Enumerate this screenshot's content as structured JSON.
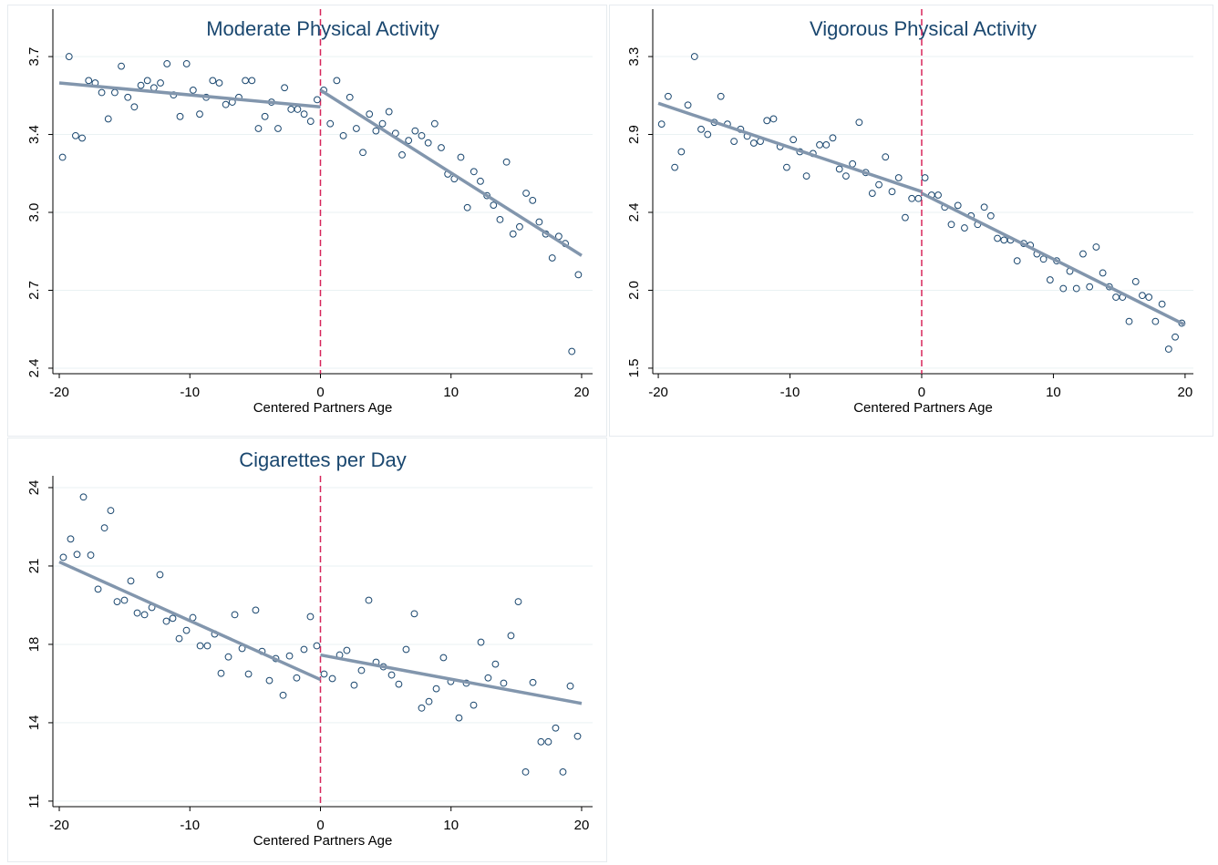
{
  "chart_data": [
    {
      "type": "scatter",
      "title": "Moderate Physical Activity",
      "xlabel": "Centered Partners Age",
      "x": [
        -19.75,
        -19.25,
        -18.75,
        -18.25,
        -17.75,
        -17.25,
        -16.75,
        -16.25,
        -15.75,
        -15.25,
        -14.75,
        -14.25,
        -13.75,
        -13.25,
        -12.75,
        -12.25,
        -11.75,
        -11.25,
        -10.75,
        -10.25,
        -9.75,
        -9.25,
        -8.75,
        -8.25,
        -7.75,
        -7.25,
        -6.75,
        -6.25,
        -5.75,
        -5.25,
        -4.75,
        -4.25,
        -3.75,
        -3.25,
        -2.75,
        -2.25,
        -1.75,
        -1.25,
        -0.75,
        -0.25,
        0.25,
        0.75,
        1.25,
        1.75,
        2.25,
        2.75,
        3.25,
        3.75,
        4.25,
        4.75,
        5.25,
        5.75,
        6.25,
        6.75,
        7.25,
        7.75,
        8.25,
        8.75,
        9.25,
        9.75,
        10.25,
        10.75,
        11.25,
        11.75,
        12.25,
        12.75,
        13.25,
        13.75,
        14.25,
        14.75,
        15.25,
        15.75,
        16.25,
        16.75,
        17.25,
        17.75,
        18.25,
        18.75,
        19.25,
        19.75
      ],
      "values": [
        3.28,
        3.7,
        3.37,
        3.36,
        3.6,
        3.59,
        3.55,
        3.44,
        3.55,
        3.66,
        3.53,
        3.49,
        3.58,
        3.6,
        3.57,
        3.59,
        3.67,
        3.54,
        3.45,
        3.67,
        3.56,
        3.46,
        3.53,
        3.6,
        3.59,
        3.5,
        3.51,
        3.53,
        3.6,
        3.6,
        3.4,
        3.45,
        3.51,
        3.4,
        3.57,
        3.48,
        3.48,
        3.46,
        3.43,
        3.52,
        3.56,
        3.42,
        3.6,
        3.37,
        3.53,
        3.4,
        3.3,
        3.46,
        3.39,
        3.42,
        3.47,
        3.38,
        3.29,
        3.35,
        3.39,
        3.37,
        3.34,
        3.42,
        3.32,
        3.21,
        3.19,
        3.28,
        3.07,
        3.22,
        3.18,
        3.12,
        3.08,
        3.02,
        3.26,
        2.96,
        2.99,
        3.13,
        3.1,
        3.01,
        2.96,
        2.86,
        2.95,
        2.92,
        2.47,
        2.79
      ],
      "point_color": "#1a476f",
      "fit": [
        {
          "x": [
            -20,
            0
          ],
          "values": [
            3.59,
            3.49
          ]
        },
        {
          "x": [
            0,
            20
          ],
          "values": [
            3.56,
            2.87
          ]
        }
      ],
      "fit_color": "#8296ad",
      "cutoff": 0,
      "cutoff_color": "#d7265b",
      "xlim": [
        -20.49,
        20.84
      ],
      "ylim": [
        2.377,
        3.898
      ],
      "xticks": [
        -20,
        -10,
        0,
        10,
        20
      ],
      "yticks": [
        2.4,
        {
          "value": 2.725,
          "label": "2.7"
        },
        {
          "value": 3.05,
          "label": "3.0"
        },
        {
          "value": 3.375,
          "label": "3.4"
        },
        3.7
      ],
      "grid": true
    },
    {
      "type": "scatter",
      "title": "Vigorous Physical Activity",
      "xlabel": "Centered Partners Age",
      "x": [
        -19.75,
        -19.25,
        -18.75,
        -18.25,
        -17.75,
        -17.25,
        -16.75,
        -16.25,
        -15.75,
        -15.25,
        -14.75,
        -14.25,
        -13.75,
        -13.25,
        -12.75,
        -12.25,
        -11.75,
        -11.25,
        -10.75,
        -10.25,
        -9.75,
        -9.25,
        -8.75,
        -8.25,
        -7.75,
        -7.25,
        -6.75,
        -6.25,
        -5.75,
        -5.25,
        -4.75,
        -4.25,
        -3.75,
        -3.25,
        -2.75,
        -2.25,
        -1.75,
        -1.25,
        -0.75,
        -0.25,
        0.25,
        0.75,
        1.25,
        1.75,
        2.25,
        2.75,
        3.25,
        3.75,
        4.25,
        4.75,
        5.25,
        5.75,
        6.25,
        6.75,
        7.25,
        7.75,
        8.25,
        8.75,
        9.25,
        9.75,
        10.25,
        10.75,
        11.25,
        11.75,
        12.25,
        12.75,
        13.25,
        13.75,
        14.25,
        14.75,
        15.25,
        15.75,
        16.25,
        16.75,
        17.25,
        17.75,
        18.25,
        18.75,
        19.25,
        19.75
      ],
      "values": [
        2.91,
        3.07,
        2.66,
        2.75,
        3.02,
        3.3,
        2.88,
        2.85,
        2.92,
        3.07,
        2.91,
        2.81,
        2.88,
        2.84,
        2.8,
        2.81,
        2.93,
        2.94,
        2.78,
        2.66,
        2.82,
        2.75,
        2.61,
        2.74,
        2.79,
        2.79,
        2.83,
        2.65,
        2.61,
        2.68,
        2.92,
        2.63,
        2.51,
        2.56,
        2.72,
        2.52,
        2.6,
        2.37,
        2.48,
        2.48,
        2.6,
        2.5,
        2.5,
        2.43,
        2.33,
        2.44,
        2.31,
        2.38,
        2.33,
        2.43,
        2.38,
        2.25,
        2.24,
        2.24,
        2.12,
        2.22,
        2.21,
        2.16,
        2.13,
        2.01,
        2.12,
        1.96,
        2.06,
        1.96,
        2.16,
        1.97,
        2.2,
        2.05,
        1.97,
        1.91,
        1.91,
        1.77,
        2.0,
        1.92,
        1.91,
        1.77,
        1.87,
        1.61,
        1.68,
        1.76
      ],
      "point_color": "#1a476f",
      "fit": [
        {
          "x": [
            -20,
            0
          ],
          "values": [
            3.03,
            2.52
          ]
        },
        {
          "x": [
            0,
            20
          ],
          "values": [
            2.51,
            1.75
          ]
        }
      ],
      "fit_color": "#8296ad",
      "cutoff": 0,
      "cutoff_color": "#d7265b",
      "xlim": [
        -20.42,
        20.63
      ],
      "ylim": [
        1.468,
        3.574
      ],
      "xticks": [
        -20,
        -10,
        0,
        10,
        20
      ],
      "yticks": [
        1.5,
        {
          "value": 1.95,
          "label": "2.0"
        },
        2.4,
        {
          "value": 2.85,
          "label": "2.9"
        },
        3.3
      ],
      "grid": true
    },
    {
      "type": "scatter",
      "title": "Cigarettes per Day",
      "xlabel": "Centered Partners Age",
      "x": [
        -19.69,
        -19.13,
        -18.64,
        -18.15,
        -17.59,
        -17.03,
        -16.54,
        -16.06,
        -15.57,
        -15.01,
        -14.52,
        -14.03,
        -13.47,
        -12.91,
        -12.29,
        -11.8,
        -11.31,
        -10.82,
        -10.26,
        -9.77,
        -9.21,
        -8.66,
        -8.1,
        -7.61,
        -7.05,
        -6.56,
        -6.0,
        -5.51,
        -4.96,
        -4.47,
        -3.91,
        -3.42,
        -2.86,
        -2.37,
        -1.82,
        -1.26,
        -0.77,
        -0.28,
        0.28,
        0.91,
        1.47,
        2.02,
        2.58,
        3.14,
        3.7,
        4.26,
        4.82,
        5.45,
        6.0,
        6.56,
        7.19,
        7.75,
        8.31,
        8.87,
        9.42,
        9.98,
        10.61,
        11.17,
        11.73,
        12.29,
        12.84,
        13.4,
        14.03,
        14.59,
        15.15,
        15.71,
        16.27,
        16.89,
        17.45,
        18.01,
        18.57,
        19.13,
        19.69
      ],
      "values": [
        21.11,
        21.87,
        21.23,
        23.61,
        21.2,
        19.79,
        22.33,
        23.05,
        19.27,
        19.33,
        20.13,
        18.8,
        18.73,
        19.03,
        20.39,
        18.46,
        18.58,
        17.74,
        18.08,
        18.61,
        17.44,
        17.44,
        17.93,
        16.3,
        16.98,
        18.73,
        17.33,
        16.27,
        18.92,
        17.21,
        16.0,
        16.91,
        15.39,
        17.02,
        16.11,
        17.29,
        18.65,
        17.44,
        16.27,
        16.08,
        17.06,
        17.25,
        15.81,
        16.42,
        19.33,
        16.76,
        16.57,
        16.23,
        15.85,
        17.29,
        18.77,
        14.86,
        15.13,
        15.66,
        16.95,
        15.96,
        14.45,
        15.89,
        14.98,
        17.59,
        16.11,
        16.68,
        15.89,
        17.86,
        19.27,
        12.21,
        15.92,
        13.46,
        13.46,
        14.03,
        12.21,
        15.77,
        13.69
      ],
      "point_color": "#1a476f",
      "fit": [
        {
          "x": [
            -20,
            0
          ],
          "values": [
            20.92,
            16.04
          ]
        },
        {
          "x": [
            0,
            20
          ],
          "values": [
            17.06,
            15.05
          ]
        }
      ],
      "fit_color": "#8296ad",
      "cutoff": 0,
      "cutoff_color": "#d7265b",
      "xlim": [
        -20.49,
        20.84
      ],
      "ylim": [
        10.77,
        24.49
      ],
      "xticks": [
        -20,
        -10,
        0,
        10,
        20
      ],
      "yticks": [
        11,
        {
          "value": 14.25,
          "label": "14"
        },
        {
          "value": 17.5,
          "label": "18"
        },
        {
          "value": 20.75,
          "label": "21"
        },
        24
      ],
      "grid": true
    }
  ]
}
